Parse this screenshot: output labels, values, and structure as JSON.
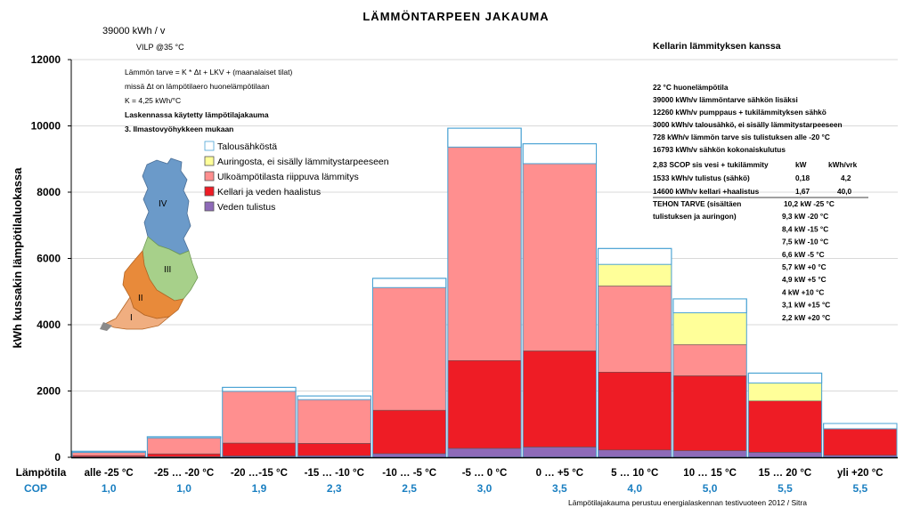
{
  "chart_data": {
    "type": "bar",
    "title": "LÄMMÖNTARPEEN JAKAUMA",
    "subtitle": "39000  kWh / v",
    "subtitle2": "VILP @35 °C",
    "ylabel": "kWh kussakin lämpötilaluokassa",
    "ylim": [
      0,
      12000
    ],
    "yticks": [
      "0",
      "2000",
      "4000",
      "6000",
      "8000",
      "10000",
      "12000"
    ],
    "xlabel": "Lämpötila",
    "cop_label": "COP",
    "categories": [
      "alle -25 °C",
      "-25 … -20 °C",
      "-20 …-15 °C",
      "-15 … -10 °C",
      "-10 … -5 °C",
      "-5 … 0 °C",
      "0 … +5 °C",
      "5 … 10 °C",
      "10 … 15 °C",
      "15 … 20 °C",
      "yli +20 °C"
    ],
    "cop": [
      "1,0",
      "1,0",
      "1,9",
      "2,3",
      "2,5",
      "3,0",
      "3,5",
      "4,0",
      "5,0",
      "5,5",
      "5,5"
    ],
    "series": [
      {
        "name": "Veden tulistus",
        "color": "#8e6ab8",
        "values": [
          10,
          15,
          40,
          50,
          110,
          270,
          310,
          220,
          200,
          150,
          60
        ]
      },
      {
        "name": "Kellari ja veden haalistus",
        "color": "#ee1c25",
        "values": [
          40,
          90,
          390,
          370,
          1310,
          2650,
          2900,
          2350,
          2260,
          1550,
          800
        ]
      },
      {
        "name": "Ulkoämpötilasta riippuva lämmitys",
        "color": "#ff8f8f",
        "values": [
          100,
          480,
          1560,
          1320,
          3700,
          6440,
          5650,
          2600,
          940,
          0,
          0
        ]
      },
      {
        "name": "Auringosta, ei sisälly lämmitystarpeeseen",
        "color": "#ffff99",
        "values": [
          0,
          0,
          0,
          0,
          0,
          0,
          0,
          650,
          960,
          540,
          0
        ]
      },
      {
        "name": "Talousähköstä",
        "color": "#ffffff",
        "values": [
          30,
          35,
          120,
          110,
          280,
          570,
          600,
          480,
          420,
          300,
          160
        ]
      }
    ],
    "legend_order": [
      "Talousähköstä",
      "Auringosta, ei sisälly lämmitystarpeeseen",
      "Ulkoämpötilasta riippuva lämmitys",
      "Kellari ja veden haalistus",
      "Veden tulistus"
    ],
    "legend_placement": "upper-left",
    "outline_color": "#4aa3d4",
    "formula_lines": [
      "Lämmön tarve =  K * Δt + LKV + (maanalaiset tilat)",
      "missä Δt on lämpötilaero huonelämpötilaan",
      "K =                       4,25 kWh/°C"
    ],
    "formula_bold_lines": [
      "Laskennassa käytetty lämpötilajakauma",
      "3.   Ilmastovyöhykkeen mukaan"
    ],
    "info_title": "Kellarin lämmityksen kanssa",
    "info_lines": [
      "22  °C huonelämpötila",
      "39000  kWh/v lämmöntarve sähkön lisäksi",
      "12260  kWh/v pumppaus + tukilämmityksen sähkö",
      "3000  kWh/v   talousähkö, ei sisälly lämmitystarpeeseen",
      "728  kWh/v       lämmön tarve sis tulistuksen alle -20 °C",
      "16793  kWh/v  sähkön kokonaiskulutus"
    ],
    "scop_rows": [
      [
        "2,83 SCOP sis vesi + tukilämmity",
        "kW",
        "kWh/vrk"
      ],
      [
        "1533  kWh/v  tulistus (sähkö)",
        "0,18",
        "4,2"
      ],
      [
        "14600  kWh/v  kellari +haalistus",
        "1,67",
        "40,0"
      ]
    ],
    "tehon_label": [
      "TEHON TARVE (sisältäen",
      "tulistuksen ja auringon)"
    ],
    "tehon_rows": [
      "10,2  kW  -25 °C",
      "9,3  kW  -20 °C",
      "8,4  kW  -15 °C",
      "7,5  kW  -10 °C",
      "6,6  kW  -5  °C",
      "5,7  kW  +0  °C",
      "4,9  kW  +5  °C",
      "4  kW  +10 °C",
      "3,1  kW  +15 °C",
      "2,2  kW  +20 °C"
    ],
    "map_zones": [
      "IV",
      "III",
      "II",
      "I"
    ],
    "footnote": "Lämpötilajakauma perustuu energialaskennan testivuoteen 2012 / Sitra"
  }
}
